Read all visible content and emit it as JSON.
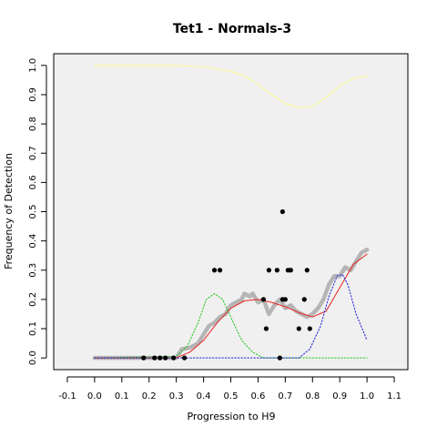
{
  "chart_data": {
    "type": "scatter",
    "title": "Tet1 - Normals-3",
    "xlabel": "Progression to H9",
    "ylabel": "Frequency of Detection",
    "xlim": [
      -0.15,
      1.15
    ],
    "ylim": [
      -0.04,
      1.04
    ],
    "x_ticks": [
      "-0.1",
      "0.0",
      "0.1",
      "0.2",
      "0.3",
      "0.4",
      "0.5",
      "0.6",
      "0.7",
      "0.8",
      "0.9",
      "1.0",
      "1.1"
    ],
    "y_ticks": [
      "0.0",
      "0.1",
      "0.2",
      "0.3",
      "0.4",
      "0.5",
      "0.6",
      "0.7",
      "0.8",
      "0.9",
      "1.0"
    ],
    "plot_background": "#f0f0f0",
    "grid": false,
    "series": [
      {
        "kind": "points",
        "color": "#000000",
        "points": [
          [
            0.18,
            0.0
          ],
          [
            0.22,
            0.0
          ],
          [
            0.24,
            0.0
          ],
          [
            0.26,
            0.0
          ],
          [
            0.29,
            0.0
          ],
          [
            0.33,
            0.0
          ],
          [
            0.44,
            0.3
          ],
          [
            0.46,
            0.3
          ],
          [
            0.62,
            0.2
          ],
          [
            0.63,
            0.1
          ],
          [
            0.64,
            0.3
          ],
          [
            0.67,
            0.3
          ],
          [
            0.68,
            0.0
          ],
          [
            0.69,
            0.5
          ],
          [
            0.69,
            0.2
          ],
          [
            0.7,
            0.2
          ],
          [
            0.71,
            0.3
          ],
          [
            0.72,
            0.3
          ],
          [
            0.75,
            0.1
          ],
          [
            0.77,
            0.2
          ],
          [
            0.78,
            0.3
          ],
          [
            0.79,
            0.1
          ]
        ]
      },
      {
        "kind": "thick-line",
        "color": "#b5b5b5",
        "points": [
          [
            0.0,
            0.0
          ],
          [
            0.1,
            0.0
          ],
          [
            0.2,
            0.0
          ],
          [
            0.3,
            0.0
          ],
          [
            0.32,
            0.03
          ],
          [
            0.35,
            0.035
          ],
          [
            0.38,
            0.05
          ],
          [
            0.4,
            0.08
          ],
          [
            0.42,
            0.11
          ],
          [
            0.44,
            0.12
          ],
          [
            0.46,
            0.14
          ],
          [
            0.48,
            0.15
          ],
          [
            0.5,
            0.18
          ],
          [
            0.52,
            0.19
          ],
          [
            0.54,
            0.2
          ],
          [
            0.55,
            0.22
          ],
          [
            0.57,
            0.21
          ],
          [
            0.58,
            0.22
          ],
          [
            0.6,
            0.19
          ],
          [
            0.62,
            0.2
          ],
          [
            0.64,
            0.15
          ],
          [
            0.66,
            0.18
          ],
          [
            0.68,
            0.2
          ],
          [
            0.7,
            0.17
          ],
          [
            0.72,
            0.18
          ],
          [
            0.74,
            0.16
          ],
          [
            0.76,
            0.15
          ],
          [
            0.78,
            0.14
          ],
          [
            0.8,
            0.15
          ],
          [
            0.82,
            0.17
          ],
          [
            0.84,
            0.2
          ],
          [
            0.86,
            0.25
          ],
          [
            0.88,
            0.28
          ],
          [
            0.9,
            0.28
          ],
          [
            0.92,
            0.31
          ],
          [
            0.94,
            0.3
          ],
          [
            0.96,
            0.33
          ],
          [
            0.98,
            0.36
          ],
          [
            1.0,
            0.37
          ]
        ]
      },
      {
        "kind": "line",
        "color": "#e8221f",
        "points": [
          [
            0.0,
            0.0
          ],
          [
            0.3,
            0.0
          ],
          [
            0.35,
            0.02
          ],
          [
            0.4,
            0.06
          ],
          [
            0.45,
            0.12
          ],
          [
            0.5,
            0.17
          ],
          [
            0.55,
            0.195
          ],
          [
            0.6,
            0.2
          ],
          [
            0.65,
            0.19
          ],
          [
            0.7,
            0.175
          ],
          [
            0.75,
            0.155
          ],
          [
            0.8,
            0.14
          ],
          [
            0.85,
            0.16
          ],
          [
            0.9,
            0.24
          ],
          [
            0.95,
            0.32
          ],
          [
            1.0,
            0.355
          ]
        ]
      },
      {
        "kind": "dotted-line",
        "color": "#22c822",
        "points": [
          [
            0.0,
            0.0
          ],
          [
            0.3,
            0.005
          ],
          [
            0.34,
            0.04
          ],
          [
            0.38,
            0.12
          ],
          [
            0.41,
            0.2
          ],
          [
            0.44,
            0.22
          ],
          [
            0.47,
            0.2
          ],
          [
            0.5,
            0.14
          ],
          [
            0.54,
            0.06
          ],
          [
            0.58,
            0.02
          ],
          [
            0.62,
            0.0
          ],
          [
            1.0,
            0.0
          ]
        ]
      },
      {
        "kind": "dotted-line",
        "color": "#2020d8",
        "points": [
          [
            0.0,
            0.0
          ],
          [
            0.75,
            0.0
          ],
          [
            0.79,
            0.03
          ],
          [
            0.83,
            0.11
          ],
          [
            0.86,
            0.21
          ],
          [
            0.89,
            0.28
          ],
          [
            0.91,
            0.285
          ],
          [
            0.93,
            0.25
          ],
          [
            0.96,
            0.15
          ],
          [
            1.0,
            0.06
          ]
        ]
      },
      {
        "kind": "line",
        "color": "#ffff99",
        "points": [
          [
            0.0,
            1.0
          ],
          [
            0.1,
            1.0
          ],
          [
            0.3,
            1.0
          ],
          [
            0.4,
            0.995
          ],
          [
            0.5,
            0.98
          ],
          [
            0.55,
            0.965
          ],
          [
            0.6,
            0.935
          ],
          [
            0.65,
            0.9
          ],
          [
            0.7,
            0.87
          ],
          [
            0.75,
            0.855
          ],
          [
            0.8,
            0.86
          ],
          [
            0.85,
            0.89
          ],
          [
            0.9,
            0.93
          ],
          [
            0.95,
            0.955
          ],
          [
            1.0,
            0.965
          ]
        ]
      }
    ]
  }
}
